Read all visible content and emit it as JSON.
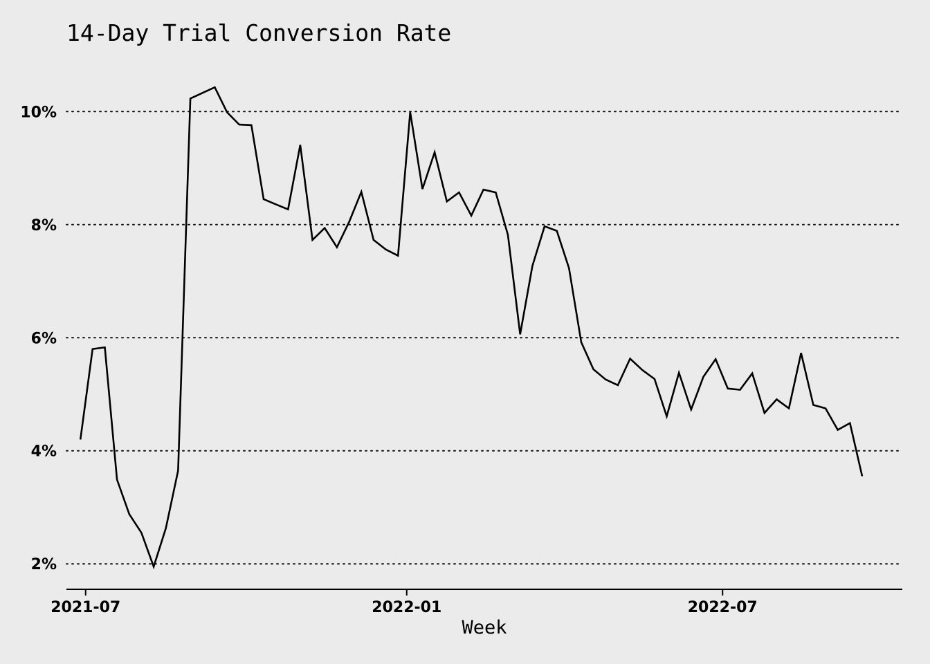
{
  "chart_data": {
    "type": "line",
    "title": "14-Day Trial Conversion Rate",
    "xlabel": "Week",
    "ylabel": "",
    "ylim": [
      1.55,
      10.75
    ],
    "yticks": [
      2,
      4,
      6,
      8,
      10
    ],
    "ytick_labels": [
      "2%",
      "4%",
      "6%",
      "8%",
      "10%"
    ],
    "xlim": [
      "2021-06-20",
      "2022-10-12"
    ],
    "xticks": [
      "2021-07-01",
      "2022-01-01",
      "2022-07-01"
    ],
    "xtick_labels": [
      "2021-07",
      "2022-01",
      "2022-07"
    ],
    "grid": "horizontal dotted",
    "legend": "none",
    "series": [
      {
        "x": [
          "2021-06-28",
          "2021-07-05",
          "2021-07-12",
          "2021-07-19",
          "2021-07-26",
          "2021-08-02",
          "2021-08-09",
          "2021-08-16",
          "2021-08-23",
          "2021-08-30",
          "2021-09-06",
          "2021-09-13",
          "2021-09-20",
          "2021-09-27",
          "2021-10-04",
          "2021-10-11",
          "2021-10-18",
          "2021-10-25",
          "2021-11-01",
          "2021-11-08",
          "2021-11-15",
          "2021-11-22",
          "2021-11-29",
          "2021-12-06",
          "2021-12-13",
          "2021-12-20",
          "2021-12-27",
          "2022-01-03",
          "2022-01-10",
          "2022-01-17",
          "2022-01-24",
          "2022-01-31",
          "2022-02-07",
          "2022-02-14",
          "2022-02-21",
          "2022-02-28",
          "2022-03-07",
          "2022-03-14",
          "2022-03-21",
          "2022-03-28",
          "2022-04-04",
          "2022-04-11",
          "2022-04-18",
          "2022-04-25",
          "2022-05-02",
          "2022-05-09",
          "2022-05-16",
          "2022-05-23",
          "2022-05-30",
          "2022-06-06",
          "2022-06-13",
          "2022-06-20",
          "2022-06-27",
          "2022-07-04",
          "2022-07-11",
          "2022-07-18",
          "2022-07-25",
          "2022-08-01",
          "2022-08-08",
          "2022-08-15",
          "2022-08-22",
          "2022-08-29",
          "2022-09-05",
          "2022-09-12",
          "2022-09-19"
        ],
        "values": [
          4.2,
          5.8,
          5.83,
          3.49,
          2.88,
          2.55,
          1.95,
          2.63,
          3.65,
          10.23,
          10.33,
          10.43,
          9.99,
          9.77,
          9.76,
          8.45,
          8.36,
          8.27,
          9.41,
          7.73,
          7.94,
          7.6,
          8.05,
          8.58,
          7.73,
          7.56,
          7.45,
          9.99,
          8.63,
          9.28,
          8.41,
          8.57,
          8.16,
          8.62,
          8.57,
          7.82,
          6.06,
          7.27,
          7.97,
          7.89,
          7.23,
          5.92,
          5.44,
          5.26,
          5.16,
          5.63,
          5.43,
          5.27,
          4.61,
          5.38,
          4.73,
          5.31,
          5.62,
          5.1,
          5.08,
          5.37,
          4.67,
          4.91,
          4.75,
          5.73,
          4.81,
          4.75,
          4.37,
          4.49,
          3.55
        ]
      }
    ]
  }
}
